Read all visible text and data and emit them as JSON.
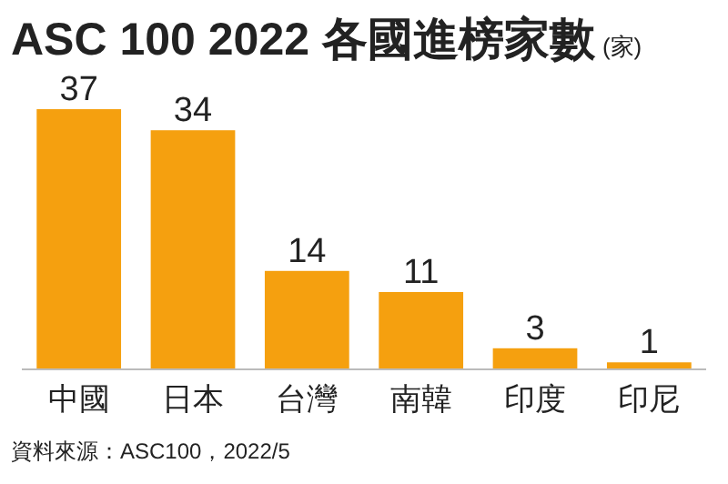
{
  "chart_data": {
    "type": "bar",
    "title": "ASC 100 2022 各國進榜家數",
    "ylabel": "(家)",
    "categories": [
      "中國",
      "日本",
      "台灣",
      "南韓",
      "印度",
      "印尼"
    ],
    "values": [
      37,
      34,
      14,
      11,
      3,
      1
    ],
    "color": "#f5a00f",
    "data_labels": true,
    "annotations": [
      "資料來源：ASC100，2022/5"
    ]
  }
}
